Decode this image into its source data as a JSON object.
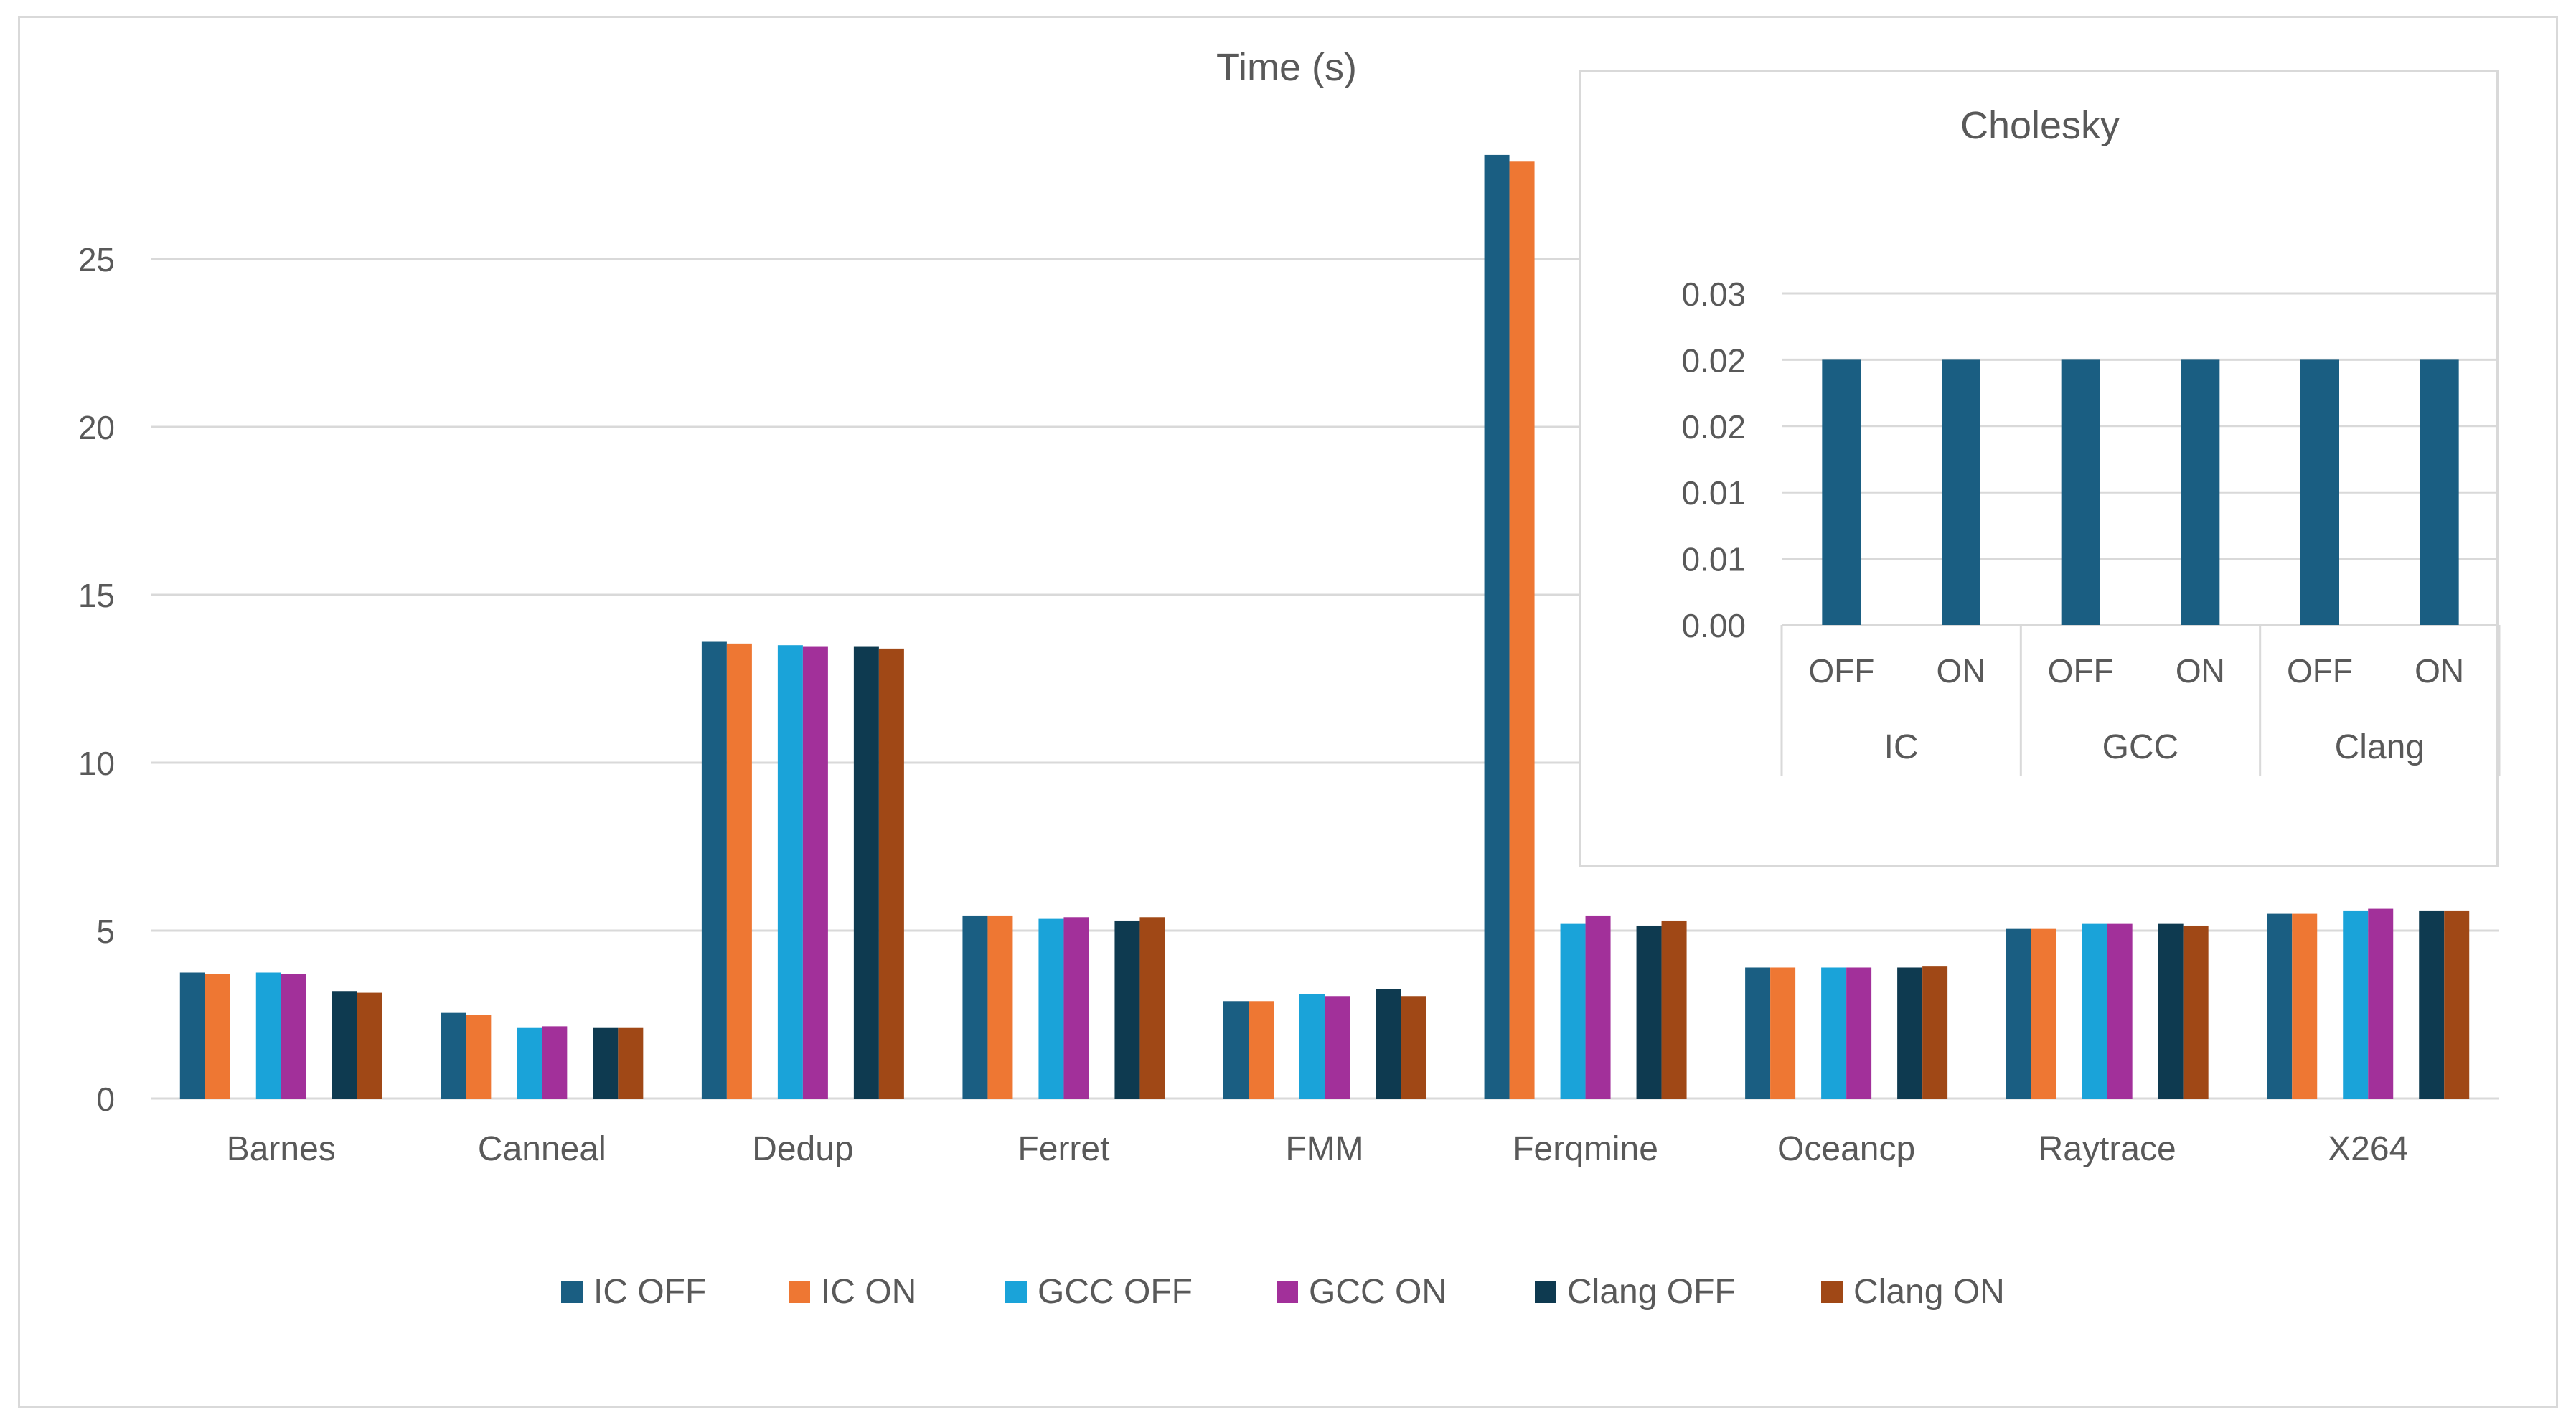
{
  "chart_data": [
    {
      "type": "bar",
      "title": "Time (s)",
      "categories": [
        "Barnes",
        "Canneal",
        "Dedup",
        "Ferret",
        "FMM",
        "Ferqmine",
        "Oceancp",
        "Raytrace",
        "X264"
      ],
      "series": [
        {
          "name": "IC OFF",
          "color": "#1a5e82",
          "values": [
            3.75,
            2.55,
            13.6,
            5.45,
            2.9,
            28.1,
            3.9,
            5.05,
            5.5
          ]
        },
        {
          "name": "IC ON",
          "color": "#ee7733",
          "values": [
            3.7,
            2.5,
            13.55,
            5.45,
            2.9,
            27.9,
            3.9,
            5.05,
            5.5
          ]
        },
        {
          "name": "GCC OFF",
          "color": "#1aa3d9",
          "values": [
            3.75,
            2.1,
            13.5,
            5.35,
            3.1,
            5.2,
            3.9,
            5.2,
            5.6
          ]
        },
        {
          "name": "GCC ON",
          "color": "#a2309a",
          "values": [
            3.7,
            2.15,
            13.45,
            5.4,
            3.05,
            5.45,
            3.9,
            5.2,
            5.65
          ]
        },
        {
          "name": "Clang OFF",
          "color": "#0e3a50",
          "values": [
            3.2,
            2.1,
            13.45,
            5.3,
            3.25,
            5.15,
            3.9,
            5.2,
            5.6
          ]
        },
        {
          "name": "Clang ON",
          "color": "#a04816",
          "values": [
            3.15,
            2.1,
            13.4,
            5.4,
            3.05,
            5.3,
            3.95,
            5.15,
            5.6
          ]
        }
      ],
      "ylim": [
        0,
        30
      ],
      "yticks": [
        "0",
        "5",
        "10",
        "15",
        "20",
        "25"
      ],
      "grid": true,
      "legend_position": "bottom"
    },
    {
      "type": "bar",
      "title": "Cholesky",
      "x": [
        {
          "group": "IC",
          "label": "OFF",
          "value": 0.02
        },
        {
          "group": "IC",
          "label": "ON",
          "value": 0.02
        },
        {
          "group": "GCC",
          "label": "OFF",
          "value": 0.02
        },
        {
          "group": "GCC",
          "label": "ON",
          "value": 0.02
        },
        {
          "group": "Clang",
          "label": "OFF",
          "value": 0.02
        },
        {
          "group": "Clang",
          "label": "ON",
          "value": 0.02
        }
      ],
      "groups": [
        "IC",
        "GCC",
        "Clang"
      ],
      "ytick_labels": [
        "0.00",
        "0.01",
        "0.01",
        "0.02",
        "0.02",
        "0.03"
      ],
      "ylim": [
        0,
        0.025
      ],
      "color": "#1a5e82",
      "grid": true
    }
  ]
}
